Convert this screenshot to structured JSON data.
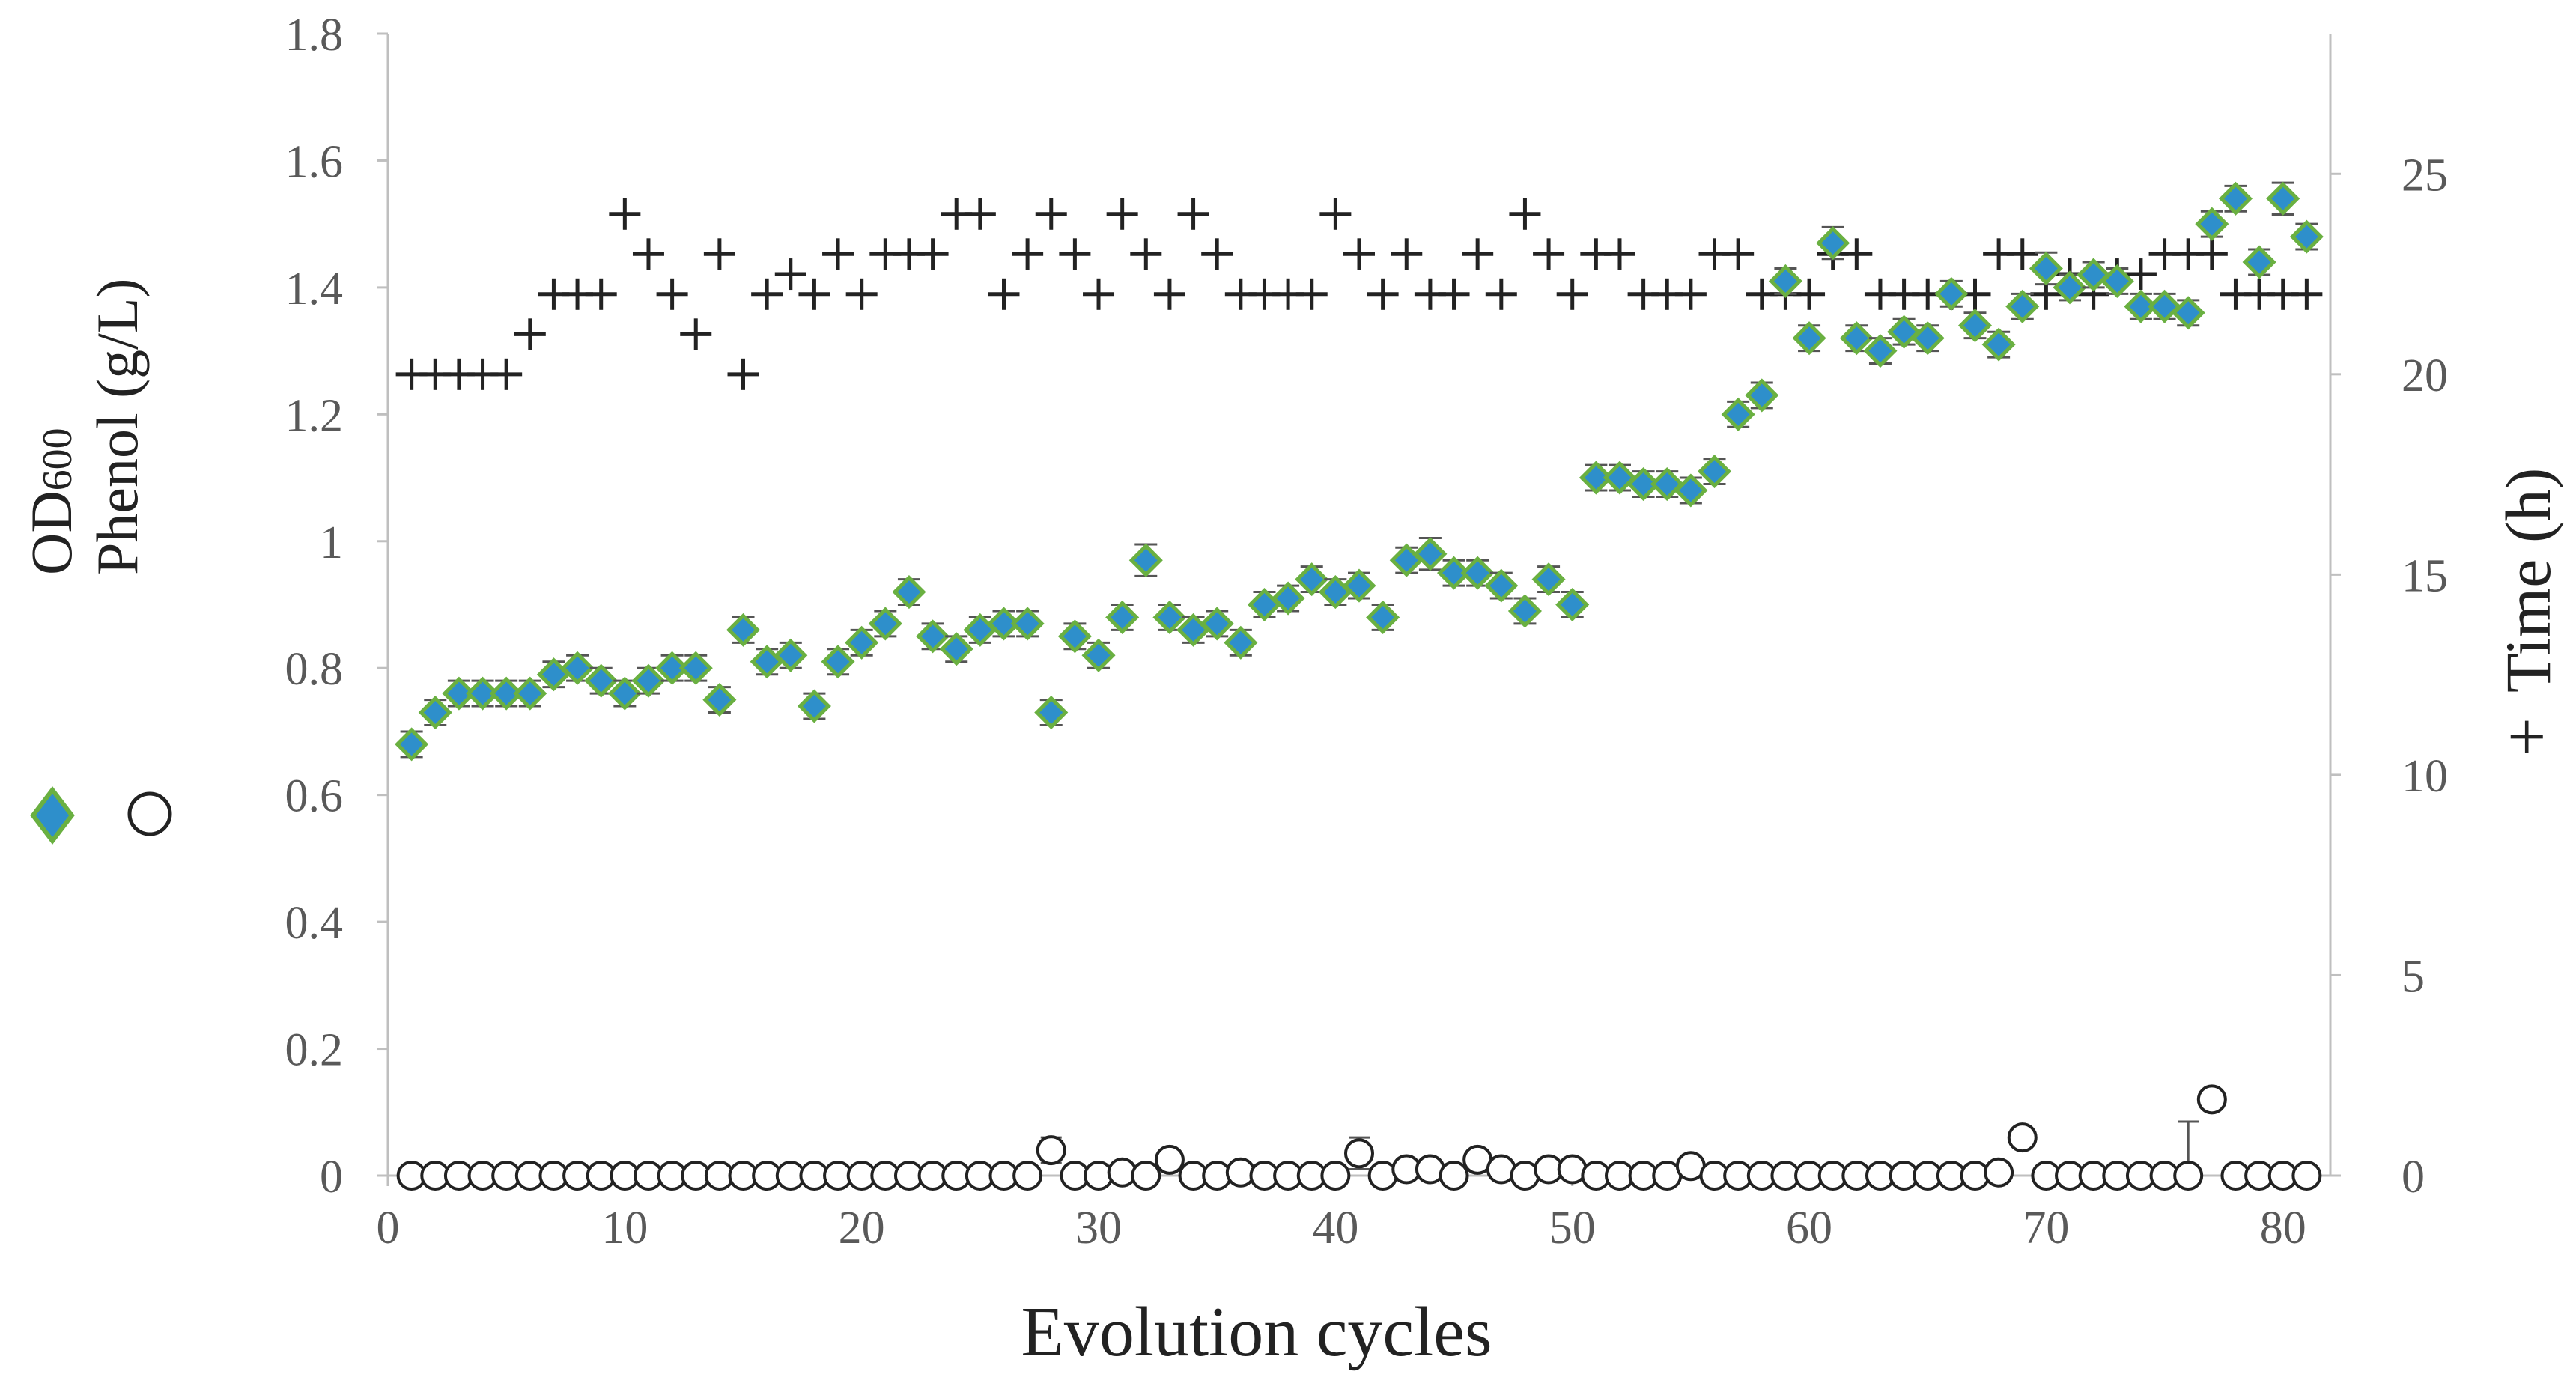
{
  "chart_data": {
    "type": "scatter",
    "title": "",
    "xlabel": "Evolution cycles",
    "ylabel_left_series": [
      {
        "name": "OD",
        "subscript": "600",
        "marker": "diamond"
      },
      {
        "name": "Phenol (g/L)",
        "marker": "circle"
      }
    ],
    "ylabel_right": {
      "symbol": "+",
      "text": "Time (h)"
    },
    "xlim": [
      0,
      82
    ],
    "ylim": [
      0,
      1.8
    ],
    "y2lim": [
      0,
      28.5
    ],
    "xticks": [
      "0",
      "10",
      "20",
      "30",
      "40",
      "50",
      "60",
      "70",
      "80"
    ],
    "xtick_values": [
      0,
      10,
      20,
      30,
      40,
      50,
      60,
      70,
      80
    ],
    "yticks": [
      "0",
      "0.2",
      "0.4",
      "0.6",
      "0.8",
      "1",
      "1.2",
      "1.4",
      "1.6",
      "1.8"
    ],
    "ytick_values": [
      0,
      0.2,
      0.4,
      0.6,
      0.8,
      1,
      1.2,
      1.4,
      1.6,
      1.8
    ],
    "y2ticks": [
      "0",
      "5",
      "10",
      "15",
      "20",
      "25"
    ],
    "y2tick_values": [
      0,
      5,
      10,
      15,
      20,
      25
    ],
    "grid": false,
    "legend": "left-vertical",
    "colors": {
      "od_fill": "#2e8fcb",
      "od_stroke": "#6ab041",
      "axis": "#bfbfbf",
      "text": "#595959",
      "label": "#222222",
      "marker": "#222222",
      "errbar": "#555555"
    },
    "series": [
      {
        "name": "OD600",
        "axis": "left",
        "x": [
          1,
          2,
          3,
          4,
          5,
          6,
          7,
          8,
          9,
          10,
          11,
          12,
          13,
          14,
          15,
          16,
          17,
          18,
          19,
          20,
          21,
          22,
          23,
          24,
          25,
          26,
          27,
          28,
          29,
          30,
          31,
          32,
          33,
          34,
          35,
          36,
          37,
          38,
          39,
          40,
          41,
          42,
          43,
          44,
          45,
          46,
          47,
          48,
          49,
          50,
          51,
          52,
          53,
          54,
          55,
          56,
          57,
          58,
          59,
          60,
          61,
          62,
          63,
          64,
          65,
          66,
          67,
          68,
          69,
          70,
          71,
          72,
          73,
          74,
          75,
          76,
          77,
          78,
          79,
          80,
          81
        ],
        "values": [
          0.68,
          0.73,
          0.76,
          0.76,
          0.76,
          0.76,
          0.79,
          0.8,
          0.78,
          0.76,
          0.78,
          0.8,
          0.8,
          0.75,
          0.86,
          0.81,
          0.82,
          0.74,
          0.81,
          0.84,
          0.87,
          0.92,
          0.85,
          0.83,
          0.86,
          0.87,
          0.87,
          0.73,
          0.85,
          0.82,
          0.88,
          0.97,
          0.88,
          0.86,
          0.87,
          0.84,
          0.9,
          0.91,
          0.94,
          0.92,
          0.93,
          0.88,
          0.97,
          0.98,
          0.95,
          0.95,
          0.93,
          0.89,
          0.94,
          0.9,
          1.1,
          1.1,
          1.09,
          1.09,
          1.08,
          1.11,
          1.2,
          1.23,
          1.41,
          1.32,
          1.47,
          1.32,
          1.3,
          1.33,
          1.32,
          1.39,
          1.34,
          1.31,
          1.37,
          1.43,
          1.4,
          1.42,
          1.41,
          1.37,
          1.37,
          1.36,
          1.5,
          1.54,
          1.44,
          1.54,
          1.48
        ],
        "errors": [
          0.02,
          0.02,
          0.02,
          0.02,
          0.02,
          0.02,
          0.02,
          0.02,
          0.02,
          0.02,
          0.02,
          0.02,
          0.02,
          0.02,
          0.02,
          0.02,
          0.02,
          0.02,
          0.02,
          0.02,
          0.02,
          0.02,
          0.02,
          0.02,
          0.02,
          0.02,
          0.02,
          0.02,
          0.02,
          0.02,
          0.02,
          0.025,
          0.02,
          0.02,
          0.02,
          0.02,
          0.02,
          0.02,
          0.02,
          0.02,
          0.02,
          0.02,
          0.02,
          0.025,
          0.02,
          0.02,
          0.02,
          0.02,
          0.02,
          0.02,
          0.02,
          0.02,
          0.02,
          0.02,
          0.02,
          0.02,
          0.02,
          0.02,
          0.02,
          0.02,
          0.025,
          0.02,
          0.02,
          0.02,
          0.02,
          0.02,
          0.02,
          0.02,
          0.02,
          0.025,
          0.02,
          0.02,
          0.02,
          0.02,
          0.02,
          0.02,
          0.02,
          0.02,
          0.02,
          0.025,
          0.02
        ]
      },
      {
        "name": "Phenol (g/L)",
        "axis": "left",
        "x": [
          1,
          2,
          3,
          4,
          5,
          6,
          7,
          8,
          9,
          10,
          11,
          12,
          13,
          14,
          15,
          16,
          17,
          18,
          19,
          20,
          21,
          22,
          23,
          24,
          25,
          26,
          27,
          28,
          29,
          30,
          31,
          32,
          33,
          34,
          35,
          36,
          37,
          38,
          39,
          40,
          41,
          42,
          43,
          44,
          45,
          46,
          47,
          48,
          49,
          50,
          51,
          52,
          53,
          54,
          55,
          56,
          57,
          58,
          59,
          60,
          61,
          62,
          63,
          64,
          65,
          66,
          67,
          68,
          69,
          70,
          71,
          72,
          73,
          74,
          75,
          76,
          77,
          78,
          79,
          80,
          81
        ],
        "values": [
          0,
          0,
          0,
          0,
          0,
          0,
          0,
          0,
          0,
          0,
          0,
          0,
          0,
          0,
          0,
          0,
          0,
          0,
          0,
          0,
          0,
          0,
          0,
          0,
          0,
          0,
          0,
          0.04,
          0,
          0,
          0.005,
          0,
          0.025,
          0,
          0,
          0.005,
          0,
          0,
          0,
          0,
          0.035,
          0,
          0.01,
          0.01,
          0,
          0.025,
          0.01,
          0,
          0.01,
          0.01,
          0,
          0,
          0,
          0,
          0.015,
          0,
          0,
          0,
          0,
          0,
          0,
          0,
          0,
          0,
          0,
          0,
          0,
          0.005,
          0.06,
          0,
          0,
          0,
          0,
          0,
          0,
          0,
          0.12,
          0,
          0,
          0,
          0
        ],
        "errors": [
          0,
          0,
          0,
          0,
          0,
          0,
          0,
          0,
          0,
          0,
          0,
          0,
          0,
          0,
          0,
          0,
          0,
          0,
          0,
          0,
          0,
          0,
          0,
          0,
          0,
          0,
          0,
          0.02,
          0,
          0,
          0,
          0,
          0.015,
          0,
          0,
          0,
          0,
          0,
          0,
          0,
          0.025,
          0,
          0,
          0,
          0,
          0,
          0,
          0,
          0,
          0,
          0,
          0,
          0,
          0,
          0,
          0,
          0,
          0,
          0,
          0,
          0,
          0,
          0,
          0,
          0,
          0,
          0,
          0,
          0.015,
          0,
          0,
          0,
          0,
          0,
          0,
          0.085,
          0,
          0,
          0,
          0,
          0
        ]
      },
      {
        "name": "Time (h)",
        "axis": "right",
        "x": [
          1,
          2,
          3,
          4,
          5,
          6,
          7,
          8,
          9,
          10,
          11,
          12,
          13,
          14,
          15,
          16,
          17,
          18,
          19,
          20,
          21,
          22,
          23,
          24,
          25,
          26,
          27,
          28,
          29,
          30,
          31,
          32,
          33,
          34,
          35,
          36,
          37,
          38,
          39,
          40,
          41,
          42,
          43,
          44,
          45,
          46,
          47,
          48,
          49,
          50,
          51,
          52,
          53,
          54,
          55,
          56,
          57,
          58,
          59,
          60,
          61,
          62,
          63,
          64,
          65,
          66,
          67,
          68,
          69,
          70,
          71,
          72,
          73,
          74,
          75,
          76,
          77,
          78,
          79,
          80,
          81
        ],
        "values": [
          20,
          20,
          20,
          20,
          20,
          21,
          22,
          22,
          22,
          24,
          23,
          22,
          21,
          23,
          20,
          22,
          22.5,
          22,
          23,
          22,
          23,
          23,
          23,
          24,
          24,
          22,
          23,
          24,
          23,
          22,
          24,
          23,
          22,
          24,
          23,
          22,
          22,
          22,
          22,
          24,
          23,
          22,
          23,
          22,
          22,
          23,
          22,
          24,
          23,
          22,
          23,
          23,
          22,
          22,
          22,
          23,
          23,
          22,
          22,
          22,
          23,
          23,
          22,
          22,
          22,
          22,
          22,
          23,
          23,
          22,
          22.5,
          22,
          22.5,
          22.5,
          23,
          23,
          23,
          22,
          22,
          22,
          22
        ]
      }
    ]
  }
}
